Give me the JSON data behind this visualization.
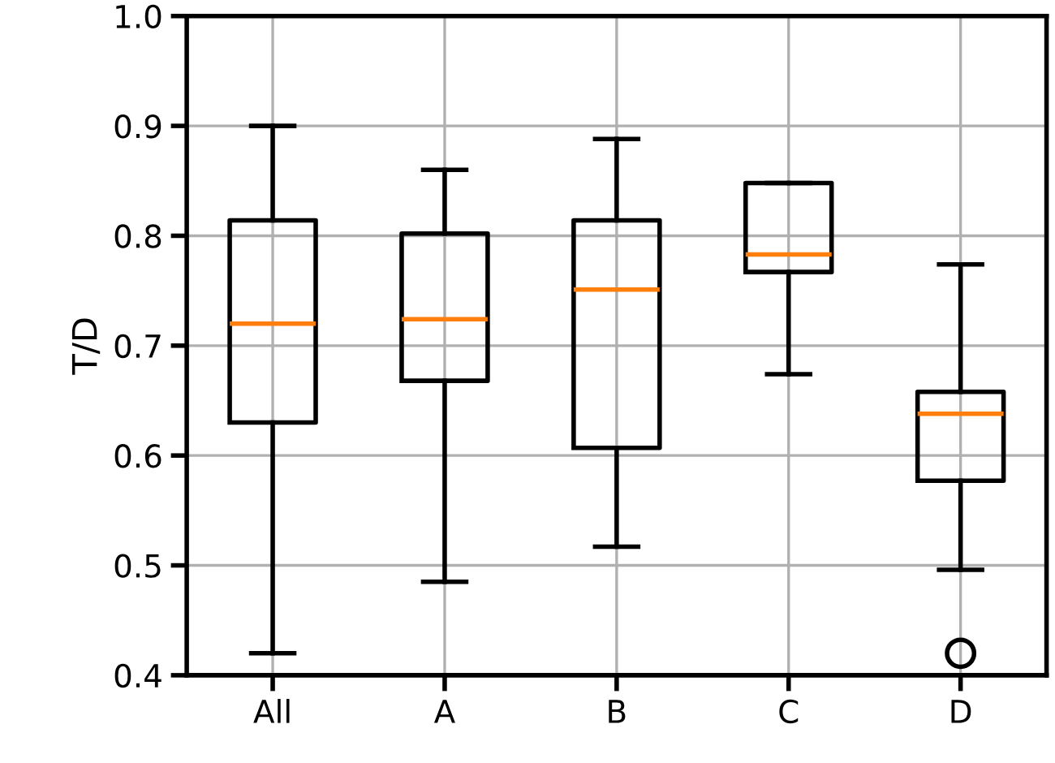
{
  "chart_data": {
    "type": "box",
    "ylabel": "T/D",
    "categories": [
      "All",
      "A",
      "B",
      "C",
      "D"
    ],
    "boxes": [
      {
        "low": 0.42,
        "q1": 0.63,
        "median": 0.72,
        "q3": 0.814,
        "high": 0.9
      },
      {
        "low": 0.485,
        "q1": 0.668,
        "median": 0.724,
        "q3": 0.802,
        "high": 0.86
      },
      {
        "low": 0.517,
        "q1": 0.607,
        "median": 0.751,
        "q3": 0.814,
        "high": 0.888
      },
      {
        "low": 0.674,
        "q1": 0.767,
        "median": 0.783,
        "q3": 0.848,
        "high": 0.848
      },
      {
        "low": 0.496,
        "q1": 0.577,
        "median": 0.638,
        "q3": 0.658,
        "high": 0.774,
        "outliers": [
          0.42
        ]
      }
    ],
    "ylim": [
      0.4,
      1.0
    ],
    "yticks": [
      {
        "value": 0.4,
        "label": "0.4"
      },
      {
        "value": 0.5,
        "label": "0.5"
      },
      {
        "value": 0.6,
        "label": "0.6"
      },
      {
        "value": 0.7,
        "label": "0.7"
      },
      {
        "value": 0.8,
        "label": "0.8"
      },
      {
        "value": 0.9,
        "label": "0.9"
      },
      {
        "value": 1.0,
        "label": "1.0"
      }
    ],
    "grid": true
  }
}
